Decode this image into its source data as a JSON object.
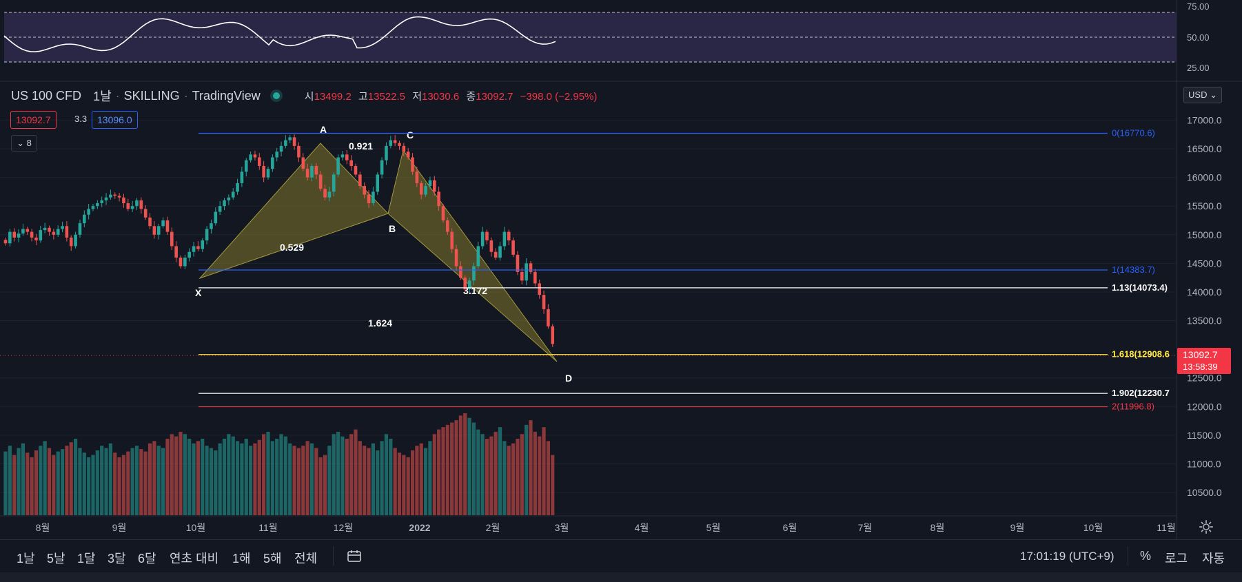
{
  "header": {
    "symbol": "US 100 CFD",
    "interval": "1날",
    "broker": "SKILLING",
    "source": "TradingView",
    "ohlc": {
      "open_label": "시",
      "open": "13499.2",
      "high_label": "고",
      "high": "13522.5",
      "low_label": "저",
      "low": "13030.6",
      "close_label": "종",
      "close": "13092.7",
      "change": "−398.0 (−2.95%)"
    },
    "bid": "13092.7",
    "spread": "3.3",
    "ask": "13096.0",
    "indicator_count": "8"
  },
  "currency_button": "USD",
  "rsi_axis": [
    "75.00",
    "50.00",
    "25.00"
  ],
  "price_axis": [
    "17000.0",
    "16500.0",
    "16000.0",
    "15500.0",
    "15000.0",
    "14500.0",
    "14000.0",
    "13500.0",
    "12500.0",
    "12000.0",
    "11500.0",
    "11000.0",
    "10500.0"
  ],
  "last_price": {
    "value": "13092.7",
    "countdown": "13:58:39"
  },
  "time_axis": [
    "8월",
    "9월",
    "10월",
    "11월",
    "12월",
    "2022",
    "2월",
    "3월",
    "4월",
    "5월",
    "6월",
    "7월",
    "8월",
    "9월",
    "10월",
    "11월"
  ],
  "pattern": {
    "points": [
      "X",
      "A",
      "B",
      "C",
      "D"
    ],
    "ratios": [
      "0.921",
      "0.529",
      "3.172",
      "1.624"
    ]
  },
  "fib_levels": [
    {
      "label": "0(16770.6)",
      "price": 16770.6,
      "color": "#2962ff"
    },
    {
      "label": "1(14383.7)",
      "price": 14383.7,
      "color": "#2962ff"
    },
    {
      "label": "1.13(14073.4)",
      "price": 14073.4,
      "color": "#ffffff"
    },
    {
      "label": "1.618(12908.6",
      "price": 12908.6,
      "color": "#ffeb3b"
    },
    {
      "label": "1.902(12230.7",
      "price": 12230.7,
      "color": "#ffffff"
    },
    {
      "label": "2(11996.8)",
      "price": 11996.8,
      "color": "#f23645"
    }
  ],
  "bottom_bar": {
    "ranges": [
      "1날",
      "5날",
      "1달",
      "3달",
      "6달",
      "연초 대비",
      "1해",
      "5해",
      "전체"
    ],
    "clock": "17:01:19 (UTC+9)",
    "percent": "%",
    "log": "로그",
    "auto": "자동"
  },
  "colors": {
    "up": "#26a69a",
    "down": "#ef5350",
    "background": "#131722",
    "pattern_fill": "#8a7f2a"
  },
  "chart_data": {
    "type": "candlestick",
    "x_range": [
      "2021-07-15",
      "2022-11-30"
    ],
    "y_range": [
      10200,
      17450
    ],
    "closes": [
      14850,
      15050,
      14950,
      15020,
      15100,
      15050,
      14950,
      14900,
      15080,
      15120,
      15050,
      15000,
      15100,
      15150,
      14950,
      14800,
      15000,
      15200,
      15350,
      15450,
      15500,
      15550,
      15600,
      15650,
      15700,
      15680,
      15650,
      15550,
      15450,
      15500,
      15600,
      15450,
      15300,
      15150,
      15000,
      15150,
      15250,
      15050,
      14800,
      14600,
      14450,
      14600,
      14700,
      14800,
      14750,
      14900,
      15100,
      15200,
      15400,
      15500,
      15600,
      15650,
      15750,
      15900,
      16100,
      16300,
      16400,
      16350,
      16200,
      16000,
      16150,
      16350,
      16450,
      16550,
      16650,
      16700,
      16550,
      16350,
      16150,
      16000,
      16200,
      16050,
      15800,
      15650,
      15750,
      16050,
      16350,
      16400,
      16300,
      16200,
      16050,
      15850,
      15700,
      15550,
      15750,
      16050,
      16300,
      16550,
      16650,
      16600,
      16550,
      16450,
      16350,
      16100,
      15900,
      15700,
      15850,
      15950,
      15750,
      15500,
      15250,
      15050,
      14750,
      14450,
      14250,
      14050,
      14200,
      14450,
      14800,
      15050,
      14900,
      14700,
      14600,
      14800,
      15050,
      14900,
      14650,
      14350,
      14200,
      14500,
      14350,
      14150,
      13950,
      13700,
      13400,
      13092.7
    ],
    "volumes": [
      55,
      60,
      52,
      58,
      62,
      54,
      50,
      56,
      60,
      64,
      58,
      52,
      55,
      57,
      60,
      63,
      66,
      58,
      54,
      50,
      52,
      56,
      60,
      58,
      62,
      54,
      50,
      52,
      55,
      58,
      60,
      57,
      55,
      62,
      64,
      60,
      58,
      66,
      70,
      68,
      72,
      70,
      66,
      62,
      64,
      66,
      60,
      58,
      56,
      62,
      66,
      70,
      68,
      64,
      62,
      66,
      60,
      62,
      65,
      70,
      72,
      64,
      66,
      70,
      68,
      62,
      60,
      58,
      60,
      64,
      62,
      58,
      50,
      52,
      60,
      70,
      72,
      68,
      66,
      70,
      74,
      64,
      60,
      58,
      62,
      56,
      64,
      70,
      66,
      58,
      54,
      52,
      50,
      56,
      60,
      62,
      58,
      64,
      70,
      74,
      76,
      78,
      80,
      82,
      86,
      88,
      84,
      80,
      74,
      70,
      66,
      68,
      72,
      76,
      64,
      60,
      62,
      66,
      70,
      78,
      82,
      72,
      68,
      76,
      64,
      52
    ]
  }
}
